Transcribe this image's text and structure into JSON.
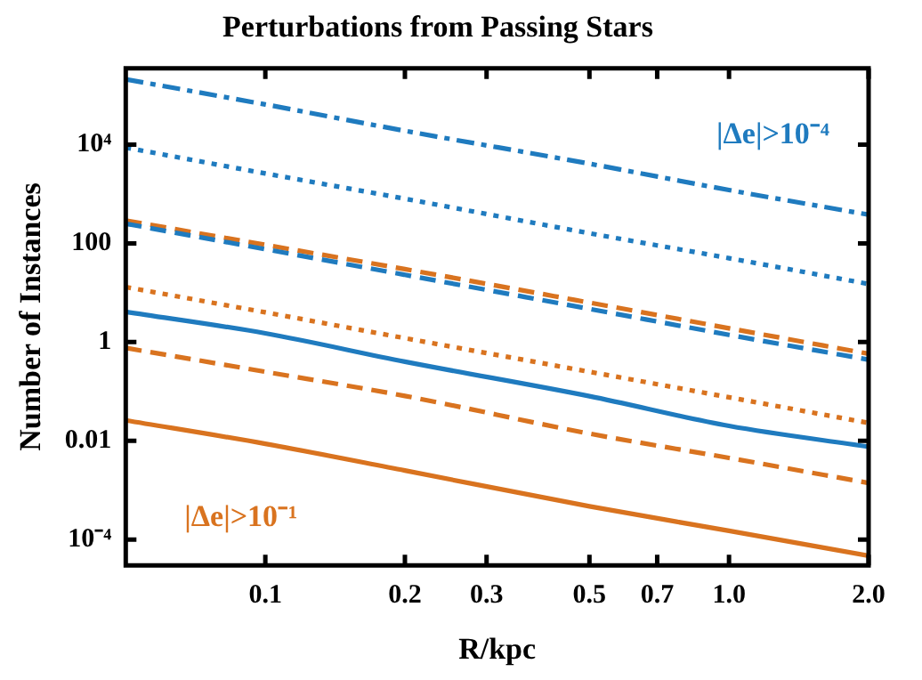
{
  "chart_data": {
    "type": "line",
    "title": "Perturbations from Passing Stars",
    "xlabel": "R/kpc",
    "ylabel": "Number of Instances",
    "x": [
      0.05,
      0.1,
      0.2,
      0.5,
      1.0,
      2.0
    ],
    "series": [
      {
        "color": "#1f7bbf",
        "line_style": "dashdot",
        "values": [
          210000,
          65000,
          19000,
          4100,
          1200,
          380
        ]
      },
      {
        "color": "#1f7bbf",
        "line_style": "dotted",
        "values": [
          8700,
          2600,
          800,
          160,
          50,
          15
        ]
      },
      {
        "color": "#1f7bbf",
        "line_style": "dashed",
        "values": [
          250,
          76,
          23,
          4.7,
          1.4,
          0.44
        ]
      },
      {
        "color": "#d9731f",
        "line_style": "dashed",
        "values": [
          290,
          93,
          30,
          6.3,
          1.9,
          0.58
        ]
      },
      {
        "color": "#d9731f",
        "line_style": "dotted",
        "values": [
          13,
          4,
          1.2,
          0.25,
          0.076,
          0.023
        ]
      },
      {
        "color": "#1f7bbf",
        "line_style": "solid",
        "values": [
          4.1,
          1.5,
          0.4,
          0.08,
          0.02,
          0.0076
        ]
      },
      {
        "color": "#d9731f",
        "line_style": "dashed",
        "values": [
          0.76,
          0.25,
          0.081,
          0.014,
          0.0045,
          0.0014
        ]
      },
      {
        "color": "#d9731f",
        "line_style": "solid",
        "values": [
          0.026,
          0.0087,
          0.0025,
          0.00047,
          0.00015,
          4.7e-05
        ]
      }
    ],
    "log": "xy",
    "xlim": [
      0.05,
      2.0
    ],
    "ylim": [
      3e-05,
      350000
    ],
    "xticks": [
      0.1,
      0.2,
      0.3,
      0.5,
      0.7,
      {
        "value": 1.0,
        "label": "1.0"
      },
      {
        "value": 2.0,
        "label": "2.0"
      }
    ],
    "yticks": [
      {
        "value": 0.0001,
        "label": "10⁻⁴"
      },
      0.01,
      1,
      100,
      {
        "value": 10000,
        "label": "10⁴"
      }
    ],
    "grid": false,
    "legend": false,
    "marker": "none",
    "annotations": [
      "|Δe|>10⁻⁴",
      "|Δe|>10⁻¹"
    ]
  }
}
